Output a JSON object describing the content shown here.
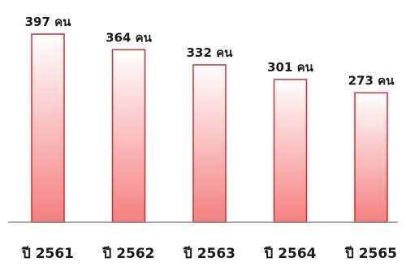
{
  "chart_data": {
    "type": "bar",
    "categories": [
      "ปี 2561",
      "ปี 2562",
      "ปี 2563",
      "ปี 2564",
      "ปี 2565"
    ],
    "values": [
      397,
      364,
      332,
      301,
      273
    ],
    "data_labels": [
      "397 คน",
      "364 คน",
      "332 คน",
      "301 คน",
      "273 คน"
    ],
    "title": "",
    "xlabel": "",
    "ylabel": "",
    "ylim": [
      0,
      397
    ],
    "grid": false,
    "legend": "none",
    "colors": {
      "bar_top": "#ffffff",
      "bar_bottom": "#f4807f",
      "bar_stroke": "#d22b2b",
      "axis": "#8c8c8c"
    }
  }
}
